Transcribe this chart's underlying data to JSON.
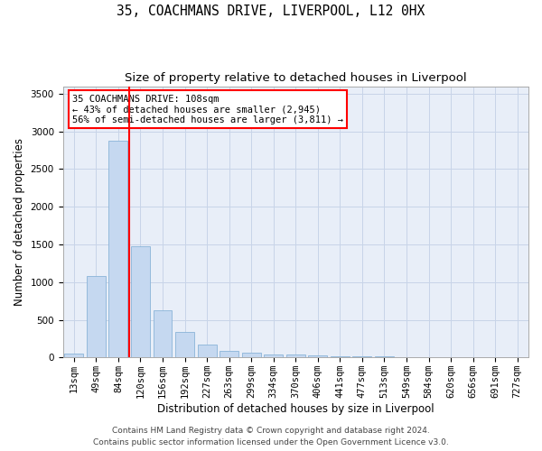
{
  "title_line1": "35, COACHMANS DRIVE, LIVERPOOL, L12 0HX",
  "title_line2": "Size of property relative to detached houses in Liverpool",
  "xlabel": "Distribution of detached houses by size in Liverpool",
  "ylabel": "Number of detached properties",
  "categories": [
    "13sqm",
    "49sqm",
    "84sqm",
    "120sqm",
    "156sqm",
    "192sqm",
    "227sqm",
    "263sqm",
    "299sqm",
    "334sqm",
    "370sqm",
    "406sqm",
    "441sqm",
    "477sqm",
    "513sqm",
    "549sqm",
    "584sqm",
    "620sqm",
    "656sqm",
    "691sqm",
    "727sqm"
  ],
  "values": [
    50,
    1080,
    2880,
    1480,
    630,
    340,
    175,
    90,
    65,
    45,
    35,
    30,
    20,
    15,
    10,
    8,
    5,
    3,
    2,
    1,
    1
  ],
  "bar_color": "#c5d8f0",
  "bar_edge_color": "#8ab4d8",
  "grid_color": "#c8d4e8",
  "background_color": "#e8eef8",
  "vline_color": "red",
  "vline_x_index": 2.5,
  "annotation_text": "35 COACHMANS DRIVE: 108sqm\n← 43% of detached houses are smaller (2,945)\n56% of semi-detached houses are larger (3,811) →",
  "annotation_box_edgecolor": "red",
  "ylim": [
    0,
    3600
  ],
  "yticks": [
    0,
    500,
    1000,
    1500,
    2000,
    2500,
    3000,
    3500
  ],
  "footer_line1": "Contains HM Land Registry data © Crown copyright and database right 2024.",
  "footer_line2": "Contains public sector information licensed under the Open Government Licence v3.0.",
  "title_fontsize": 10.5,
  "subtitle_fontsize": 9.5,
  "axis_label_fontsize": 8.5,
  "tick_fontsize": 7.5,
  "annotation_fontsize": 7.5,
  "footer_fontsize": 6.5
}
